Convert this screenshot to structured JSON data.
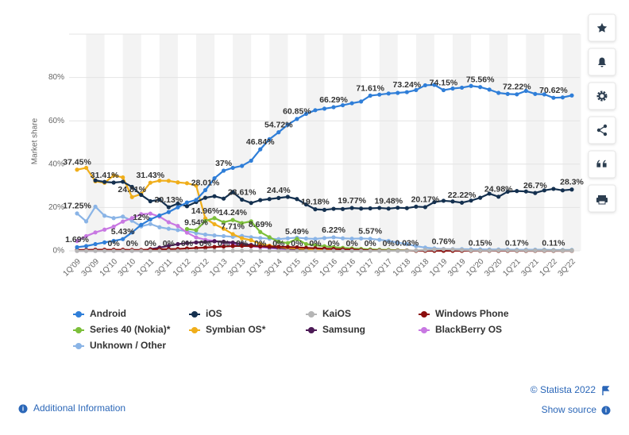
{
  "chart_data": {
    "type": "line",
    "y_label": "Market share",
    "categories": [
      "1Q'09",
      null,
      "3Q'09",
      null,
      "1Q'10",
      null,
      "3Q'10",
      null,
      "1Q'11",
      null,
      "3Q'11",
      null,
      "1Q'12",
      null,
      "3Q'12",
      null,
      "1Q'13",
      null,
      "3Q'13",
      null,
      "1Q'14",
      null,
      "3Q'14",
      null,
      "1Q'15",
      null,
      "3Q'15",
      null,
      "1Q'16",
      null,
      "3Q'16",
      null,
      "1Q'17",
      null,
      "3Q'17",
      null,
      "1Q'18",
      null,
      "3Q'18",
      null,
      "1Q'19",
      null,
      "3Q'19",
      null,
      "1Q'20",
      null,
      "3Q'20",
      null,
      "1Q'21",
      null,
      "3Q'21",
      null,
      "1Q'22",
      null,
      "3Q'22"
    ],
    "ylim": [
      0,
      100
    ],
    "yticks": [
      {
        "value": 0,
        "label": "0%"
      },
      {
        "value": 20,
        "label": "20%"
      },
      {
        "value": 40,
        "label": "40%"
      },
      {
        "value": 60,
        "label": "60%"
      },
      {
        "value": 80,
        "label": "80%"
      }
    ],
    "grid": true,
    "legend": "bottom",
    "series": [
      {
        "name": "Android",
        "color": "#2f7ed8",
        "values": [
          1.69,
          2.2,
          3.1,
          3.9,
          4.6,
          5.43,
          8.5,
          12,
          14.5,
          16.3,
          17.9,
          20.1,
          22.3,
          23.5,
          28.01,
          33.5,
          37,
          38.3,
          39.2,
          41.6,
          46.84,
          51.5,
          54.72,
          58.2,
          60.85,
          63.2,
          64.9,
          65.6,
          66.29,
          67.2,
          68.1,
          68.9,
          71.61,
          72.1,
          72.6,
          72.9,
          73.24,
          74.2,
          76.4,
          76.6,
          74.15,
          74.9,
          75.3,
          76.1,
          75.56,
          74.4,
          72.9,
          72.4,
          72.22,
          73.8,
          72.4,
          72.2,
          70.62,
          70.8,
          71.7
        ],
        "value_labels": [
          "1.69%",
          null,
          null,
          null,
          null,
          "5.43%",
          null,
          "12%",
          null,
          null,
          null,
          null,
          null,
          null,
          "28.01%",
          null,
          "37%",
          null,
          null,
          null,
          "46.84%",
          null,
          "54.72%",
          null,
          "60.85%",
          null,
          null,
          null,
          "66.29%",
          null,
          null,
          null,
          "71.61%",
          null,
          null,
          null,
          "73.24%",
          null,
          null,
          null,
          "74.15%",
          null,
          null,
          null,
          "75.56%",
          null,
          null,
          null,
          "72.22%",
          null,
          null,
          null,
          "70.62%",
          null,
          null
        ]
      },
      {
        "name": "iOS",
        "color": "#14304f",
        "values": [
          null,
          null,
          32.5,
          31.8,
          31.5,
          31.9,
          29.5,
          25.8,
          22.9,
          23.6,
          20.13,
          21.8,
          20.6,
          22.5,
          24.5,
          25.2,
          24.1,
          27.1,
          23.61,
          22.1,
          23.4,
          23.9,
          24.4,
          24.9,
          23.9,
          21.4,
          19.18,
          18.9,
          19.4,
          19.3,
          19.77,
          19.5,
          19.6,
          19.8,
          19.48,
          19.9,
          19.7,
          20.4,
          20.17,
          22.5,
          23.1,
          22.8,
          22.22,
          23.2,
          24.5,
          26.4,
          24.98,
          27.3,
          27.6,
          27.4,
          26.7,
          27.9,
          28.6,
          27.9,
          28.3
        ],
        "value_labels": [
          null,
          null,
          null,
          null,
          null,
          null,
          null,
          null,
          null,
          null,
          "20.13%",
          null,
          null,
          null,
          null,
          null,
          null,
          null,
          "23.61%",
          null,
          null,
          null,
          "24.4%",
          null,
          null,
          null,
          "19.18%",
          null,
          null,
          null,
          "19.77%",
          null,
          null,
          null,
          "19.48%",
          null,
          null,
          null,
          "20.17%",
          null,
          null,
          null,
          "22.22%",
          null,
          null,
          null,
          "24.98%",
          null,
          null,
          null,
          "26.7%",
          null,
          null,
          null,
          "28.3%"
        ]
      },
      {
        "name": "KaiOS",
        "color": "#b5b5b5",
        "values": [
          0,
          0,
          0,
          0,
          0,
          0,
          0,
          0,
          0,
          0,
          0,
          0,
          0,
          0,
          0,
          0,
          0,
          0,
          0,
          0,
          0,
          0,
          0,
          0,
          0,
          0,
          0,
          0,
          0,
          0,
          0,
          0,
          0,
          0,
          0,
          0,
          0.03,
          0.2,
          0.4,
          0.6,
          0.76,
          0.6,
          0.4,
          0.2,
          0.15,
          0.15,
          0.2,
          0.2,
          0.17,
          0.15,
          0.14,
          0.12,
          0.11,
          0.1,
          0.1
        ],
        "value_labels": [
          null,
          null,
          null,
          null,
          "0%",
          null,
          "0%",
          null,
          "0%",
          null,
          "0%",
          null,
          "0%",
          null,
          "0%",
          null,
          "0%",
          null,
          "0%",
          null,
          "0%",
          null,
          "0%",
          null,
          "0%",
          null,
          "0%",
          null,
          "0%",
          null,
          "0%",
          null,
          "0%",
          null,
          "0%",
          null,
          "0.03%",
          null,
          null,
          null,
          "0.76%",
          null,
          null,
          null,
          "0.15%",
          null,
          null,
          null,
          "0.17%",
          null,
          null,
          null,
          "0.11%",
          null,
          null
        ]
      },
      {
        "name": "Windows Phone",
        "color": "#8b0d0d",
        "values": [
          0.4,
          0.4,
          0.5,
          0.5,
          0.5,
          0.5,
          0.4,
          0.4,
          0.6,
          0.7,
          0.8,
          0.9,
          1.1,
          1.3,
          1.5,
          1.8,
          2.0,
          2.2,
          2.3,
          2.2,
          2.1,
          2.0,
          1.9,
          1.8,
          1.6,
          1.4,
          1.2,
          1.0,
          0.9,
          0.7,
          0.6,
          0.4,
          0.3,
          0.2,
          0.1,
          0.1,
          0.1,
          0.05,
          0.05,
          0.05,
          0.03,
          0.03,
          0.03,
          0.03,
          0.02,
          0.02,
          0.02,
          0.02,
          0.02,
          0.01,
          0.01,
          0.01,
          0.01,
          0.01,
          0.01
        ]
      },
      {
        "name": "Series 40 (Nokia)*",
        "color": "#7cbf3a",
        "values": [
          null,
          null,
          null,
          null,
          null,
          null,
          null,
          null,
          null,
          null,
          null,
          null,
          10.1,
          9.54,
          13.8,
          15.1,
          13.2,
          14.24,
          12.8,
          13.6,
          8.69,
          6.3,
          4.2,
          3.6,
          5.49,
          3.1,
          2.6,
          2.1,
          1.7,
          1.4,
          1.1,
          0.9,
          0.7,
          0.5,
          0.4,
          0.3,
          0.2,
          0.1,
          0.1,
          0.1,
          0.1,
          0.1,
          0.1,
          0.1,
          0.1,
          0.1,
          0.1,
          0.1,
          0.1,
          0.1,
          0.1,
          0.1,
          0.1,
          0.1,
          0.1
        ],
        "value_labels": [
          null,
          null,
          null,
          null,
          null,
          null,
          null,
          null,
          null,
          null,
          null,
          null,
          null,
          "9.54%",
          null,
          null,
          null,
          "14.24%",
          null,
          null,
          "8.69%",
          null,
          null,
          null,
          "5.49%",
          null,
          null,
          null,
          null,
          null,
          null,
          null,
          null,
          null,
          null,
          null,
          null,
          null,
          null,
          null,
          null,
          null,
          null,
          null,
          null,
          null,
          null,
          null,
          null,
          null,
          null,
          null,
          null,
          null,
          null
        ]
      },
      {
        "name": "Symbian OS*",
        "color": "#f0ae1a",
        "values": [
          37.45,
          38.3,
          32.1,
          31.41,
          34.8,
          33.9,
          24.81,
          26.2,
          31.43,
          32.4,
          32.3,
          31.6,
          31.2,
          30.1,
          14.96,
          12.3,
          10.2,
          7.71,
          5.8,
          4.9,
          3.2,
          2.4,
          1.8,
          1.3,
          1.1,
          0.9,
          0.7,
          0.6,
          0.5,
          0.4,
          0.3,
          0.25,
          0.2,
          0.15,
          0.1,
          0.1,
          0.05,
          0.05,
          0.05,
          0.05,
          0.05,
          0.05,
          0.05,
          0.05,
          0.05,
          0.05,
          0.05,
          0.05,
          0.05,
          0.05,
          0.05,
          0.05,
          0.05,
          0.05,
          0.05
        ],
        "value_labels": [
          "37.45%",
          null,
          null,
          "31.41%",
          null,
          null,
          "24.81%",
          null,
          "31.43%",
          null,
          null,
          null,
          null,
          null,
          "14.96%",
          null,
          null,
          "7.71%",
          null,
          null,
          null,
          null,
          null,
          null,
          null,
          null,
          null,
          null,
          null,
          null,
          null,
          null,
          null,
          null,
          null,
          null,
          null,
          null,
          null,
          null,
          null,
          null,
          null,
          null,
          null,
          null,
          null,
          null,
          null,
          null,
          null,
          null,
          null,
          null,
          null
        ]
      },
      {
        "name": "Samsung",
        "color": "#4c1a56",
        "values": [
          0,
          0,
          0,
          0,
          0,
          0,
          0,
          0,
          0.8,
          1.5,
          2.3,
          3.1,
          3.6,
          3.9,
          4.1,
          4.4,
          4.2,
          3.8,
          3.2,
          2.7,
          2.1,
          1.7,
          1.3,
          1.0,
          0.8,
          0.6,
          0.5,
          0.4,
          0.3,
          0.2,
          0.2,
          0.1,
          0.1,
          0.1,
          0.1,
          0.1,
          0.1,
          0.1,
          0.1,
          0.1,
          0.1,
          0.1,
          0.1,
          0.1,
          0.1,
          0.1,
          0.1,
          0.1,
          0.1,
          0.1,
          0.1,
          0.1,
          0.1,
          0.1,
          0.1
        ]
      },
      {
        "name": "BlackBerry OS",
        "color": "#c878e2",
        "values": [
          4.5,
          6.8,
          8.5,
          9.8,
          11.2,
          13.5,
          15.1,
          16.9,
          17.2,
          15.8,
          13.2,
          11.5,
          8.4,
          6.2,
          5.1,
          4.6,
          3.8,
          3.2,
          2.6,
          2.1,
          1.7,
          1.3,
          1.0,
          0.8,
          0.6,
          0.5,
          0.4,
          0.3,
          0.2,
          0.2,
          0.1,
          0.05,
          0.05,
          0.05,
          0.05,
          0.05,
          0.05,
          0.05,
          0.05,
          0.05,
          0.05,
          0.05,
          0.05,
          0.05,
          0.05,
          0.05,
          0.05,
          0.05,
          0.05,
          0.05,
          0.05,
          0.05,
          0.05,
          0.05,
          0.05
        ]
      },
      {
        "name": "Unknown / Other",
        "color": "#8ab4e6",
        "values": [
          17.25,
          13.6,
          20.4,
          16.2,
          15.1,
          15.8,
          13.9,
          11.3,
          12.4,
          10.9,
          10.2,
          9.6,
          9.1,
          8.2,
          7.5,
          7.1,
          6.8,
          6.5,
          6.9,
          6.3,
          5.9,
          5.6,
          5.4,
          5.8,
          6.1,
          5.7,
          5.5,
          5.9,
          6.22,
          5.8,
          5.6,
          5.7,
          5.57,
          5.1,
          4.6,
          3.8,
          3.1,
          2.2,
          1.5,
          1.1,
          0.9,
          0.8,
          0.8,
          0.7,
          0.7,
          0.6,
          0.6,
          0.6,
          0.5,
          0.5,
          0.5,
          0.5,
          0.4,
          0.4,
          0.4
        ],
        "value_labels": [
          "17.25%",
          null,
          null,
          null,
          null,
          null,
          null,
          null,
          null,
          null,
          null,
          null,
          null,
          null,
          null,
          null,
          null,
          null,
          null,
          null,
          null,
          null,
          null,
          null,
          null,
          null,
          null,
          null,
          "6.22%",
          null,
          null,
          null,
          "5.57%",
          null,
          null,
          null,
          null,
          null,
          null,
          null,
          null,
          null,
          null,
          null,
          null,
          null,
          null,
          null,
          null,
          null,
          null,
          null,
          null,
          null,
          null
        ]
      }
    ]
  },
  "footer": {
    "copyright": "© Statista 2022",
    "additional_information": "Additional Information",
    "show_source": "Show source"
  }
}
